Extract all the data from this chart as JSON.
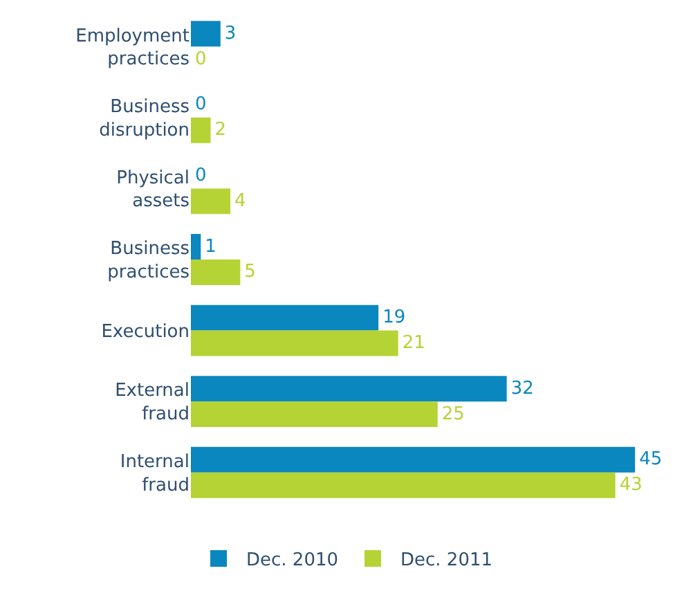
{
  "chart_data": {
    "type": "bar",
    "orientation": "horizontal",
    "categories": [
      "Employment\npractices",
      "Business\ndisruption",
      "Physical\nassets",
      "Business\npractices",
      "Execution",
      "External\nfraud",
      "Internal\nfraud"
    ],
    "series": [
      {
        "name": "Dec. 2010",
        "color": "#0a87be",
        "values": [
          3,
          0,
          0,
          1,
          19,
          32,
          45
        ]
      },
      {
        "name": "Dec. 2011",
        "color": "#b5d334",
        "values": [
          0,
          2,
          4,
          5,
          21,
          25,
          43
        ]
      }
    ],
    "data_labels": true,
    "legend": "bottom"
  }
}
